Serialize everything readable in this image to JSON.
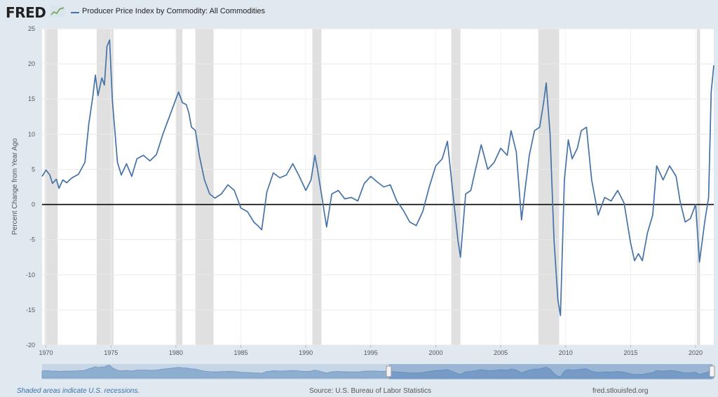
{
  "header": {
    "logo": "FRED",
    "logo_icon": "line-graph-icon",
    "legend_label": "Producer Price Index by Commodity: All Commodities"
  },
  "footer": {
    "recession_note": "Shaded areas indicate U.S. recessions.",
    "source": "Source: U.S. Bureau of Labor Statistics",
    "site": "fred.stlouisfed.org"
  },
  "colors": {
    "series": "#4572a7",
    "recession": "#e0e0e0",
    "zero_line": "#000000"
  },
  "chart_data": {
    "type": "line",
    "title": "",
    "xlabel": "",
    "ylabel": "Percent Change from Year Ago",
    "ylim": [
      -20,
      25
    ],
    "xlim": [
      1969.7,
      2021.4
    ],
    "y_ticks": [
      25,
      20,
      15,
      10,
      5,
      0,
      -5,
      -10,
      -15,
      -20
    ],
    "x_ticks": [
      1970,
      1975,
      1980,
      1985,
      1990,
      1995,
      2000,
      2005,
      2010,
      2015,
      2020
    ],
    "grid": true,
    "recessions": [
      [
        1969.9,
        1970.9
      ],
      [
        1973.9,
        1975.2
      ],
      [
        1980.0,
        1980.5
      ],
      [
        1981.5,
        1982.9
      ],
      [
        1990.5,
        1991.2
      ],
      [
        2001.2,
        2001.9
      ],
      [
        2007.9,
        2009.5
      ],
      [
        2020.1,
        2020.35
      ]
    ],
    "series": [
      {
        "name": "Producer Price Index by Commodity: All Commodities",
        "x": [
          1969.7,
          1970.0,
          1970.3,
          1970.5,
          1970.8,
          1971.0,
          1971.3,
          1971.6,
          1972.0,
          1972.5,
          1973.0,
          1973.3,
          1973.6,
          1973.8,
          1974.0,
          1974.3,
          1974.5,
          1974.7,
          1974.9,
          1975.1,
          1975.5,
          1975.8,
          1976.2,
          1976.6,
          1977.0,
          1977.5,
          1978.0,
          1978.5,
          1979.0,
          1979.5,
          1980.0,
          1980.2,
          1980.5,
          1980.8,
          1981.0,
          1981.2,
          1981.5,
          1981.8,
          1982.2,
          1982.6,
          1983.0,
          1983.5,
          1984.0,
          1984.5,
          1985.0,
          1985.5,
          1986.0,
          1986.3,
          1986.6,
          1987.0,
          1987.5,
          1988.0,
          1988.5,
          1989.0,
          1989.5,
          1990.0,
          1990.4,
          1990.7,
          1990.9,
          1991.2,
          1991.6,
          1992.0,
          1992.5,
          1993.0,
          1993.5,
          1994.0,
          1994.5,
          1995.0,
          1995.5,
          1996.0,
          1996.5,
          1997.0,
          1997.5,
          1998.0,
          1998.5,
          1999.0,
          1999.5,
          2000.0,
          2000.5,
          2000.9,
          2001.3,
          2001.7,
          2001.9,
          2002.3,
          2002.7,
          2003.0,
          2003.5,
          2004.0,
          2004.5,
          2005.0,
          2005.5,
          2005.8,
          2006.2,
          2006.6,
          2006.9,
          2007.2,
          2007.6,
          2008.0,
          2008.3,
          2008.5,
          2008.8,
          2009.1,
          2009.4,
          2009.6,
          2009.9,
          2010.2,
          2010.5,
          2010.9,
          2011.2,
          2011.6,
          2012.0,
          2012.5,
          2013.0,
          2013.5,
          2014.0,
          2014.5,
          2015.0,
          2015.3,
          2015.6,
          2015.9,
          2016.3,
          2016.7,
          2017.0,
          2017.5,
          2018.0,
          2018.5,
          2018.8,
          2019.2,
          2019.6,
          2020.0,
          2020.3,
          2020.7,
          2021.0,
          2021.2,
          2021.4
        ],
        "y": [
          4.0,
          4.9,
          4.2,
          3.0,
          3.6,
          2.3,
          3.5,
          3.1,
          3.8,
          4.3,
          6.0,
          11.5,
          15.3,
          18.4,
          15.5,
          18.0,
          17.0,
          22.5,
          23.4,
          15.0,
          6.0,
          4.2,
          5.8,
          4.0,
          6.5,
          7.0,
          6.2,
          7.1,
          10.0,
          12.5,
          15.0,
          16.0,
          14.5,
          14.2,
          13.0,
          11.0,
          10.5,
          7.0,
          3.5,
          1.5,
          0.9,
          1.5,
          2.8,
          2.0,
          -0.5,
          -1.0,
          -2.5,
          -3.0,
          -3.6,
          1.8,
          4.5,
          3.8,
          4.2,
          5.8,
          4.0,
          2.0,
          3.5,
          7.0,
          5.0,
          1.5,
          -3.2,
          1.5,
          2.0,
          0.8,
          1.0,
          0.5,
          3.0,
          4.0,
          3.2,
          2.5,
          2.8,
          0.5,
          -0.8,
          -2.5,
          -3.0,
          -1.0,
          2.5,
          5.5,
          6.5,
          9.0,
          2.0,
          -5.0,
          -7.5,
          1.5,
          2.0,
          4.5,
          8.5,
          5.0,
          6.0,
          8.0,
          7.0,
          10.5,
          7.5,
          -2.2,
          2.5,
          7.0,
          10.5,
          11.0,
          14.5,
          17.3,
          10.0,
          -5.0,
          -13.5,
          -15.8,
          3.5,
          9.2,
          6.5,
          8.0,
          10.5,
          11.0,
          3.5,
          -1.5,
          1.0,
          0.5,
          2.0,
          0.2,
          -5.5,
          -8.0,
          -7.0,
          -8.0,
          -4.0,
          -1.5,
          5.5,
          3.5,
          5.5,
          4.0,
          0.5,
          -2.5,
          -2.0,
          0.0,
          -8.2,
          -2.5,
          1.0,
          16.0,
          19.8
        ]
      }
    ]
  }
}
